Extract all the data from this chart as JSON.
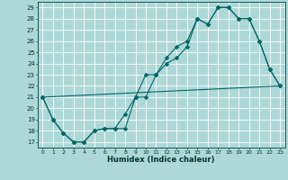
{
  "xlabel": "Humidex (Indice chaleur)",
  "bg_color": "#aed8d8",
  "grid_color": "#ffffff",
  "line_color": "#006666",
  "xlim": [
    -0.5,
    23.5
  ],
  "ylim": [
    16.5,
    29.5
  ],
  "xticks": [
    0,
    1,
    2,
    3,
    4,
    5,
    6,
    7,
    8,
    9,
    10,
    11,
    12,
    13,
    14,
    15,
    16,
    17,
    18,
    19,
    20,
    21,
    22,
    23
  ],
  "yticks": [
    17,
    18,
    19,
    20,
    21,
    22,
    23,
    24,
    25,
    26,
    27,
    28,
    29
  ],
  "line1_x": [
    0,
    1,
    2,
    3,
    4,
    5,
    6,
    7,
    8,
    9,
    10,
    11,
    12,
    13,
    14,
    15,
    16,
    17,
    18,
    19,
    20,
    21,
    22,
    23
  ],
  "line1_y": [
    21,
    19,
    17.8,
    17,
    17,
    18,
    18.2,
    18.2,
    18.2,
    21,
    21,
    23,
    24,
    24.5,
    25.5,
    28,
    27.5,
    29,
    29,
    28,
    28,
    26,
    23.5,
    22
  ],
  "line2_x": [
    0,
    1,
    2,
    3,
    4,
    5,
    6,
    7,
    8,
    9,
    10,
    11,
    12,
    13,
    14,
    15,
    16,
    17,
    18,
    19,
    20,
    21,
    22,
    23
  ],
  "line2_y": [
    21,
    19,
    17.8,
    17,
    17,
    18,
    18.2,
    18.2,
    19.5,
    21,
    23,
    23,
    24.5,
    25.5,
    26,
    28,
    27.5,
    29,
    29,
    28,
    28,
    26,
    23.5,
    22
  ],
  "line3_x": [
    0,
    23
  ],
  "line3_y": [
    21,
    22
  ]
}
